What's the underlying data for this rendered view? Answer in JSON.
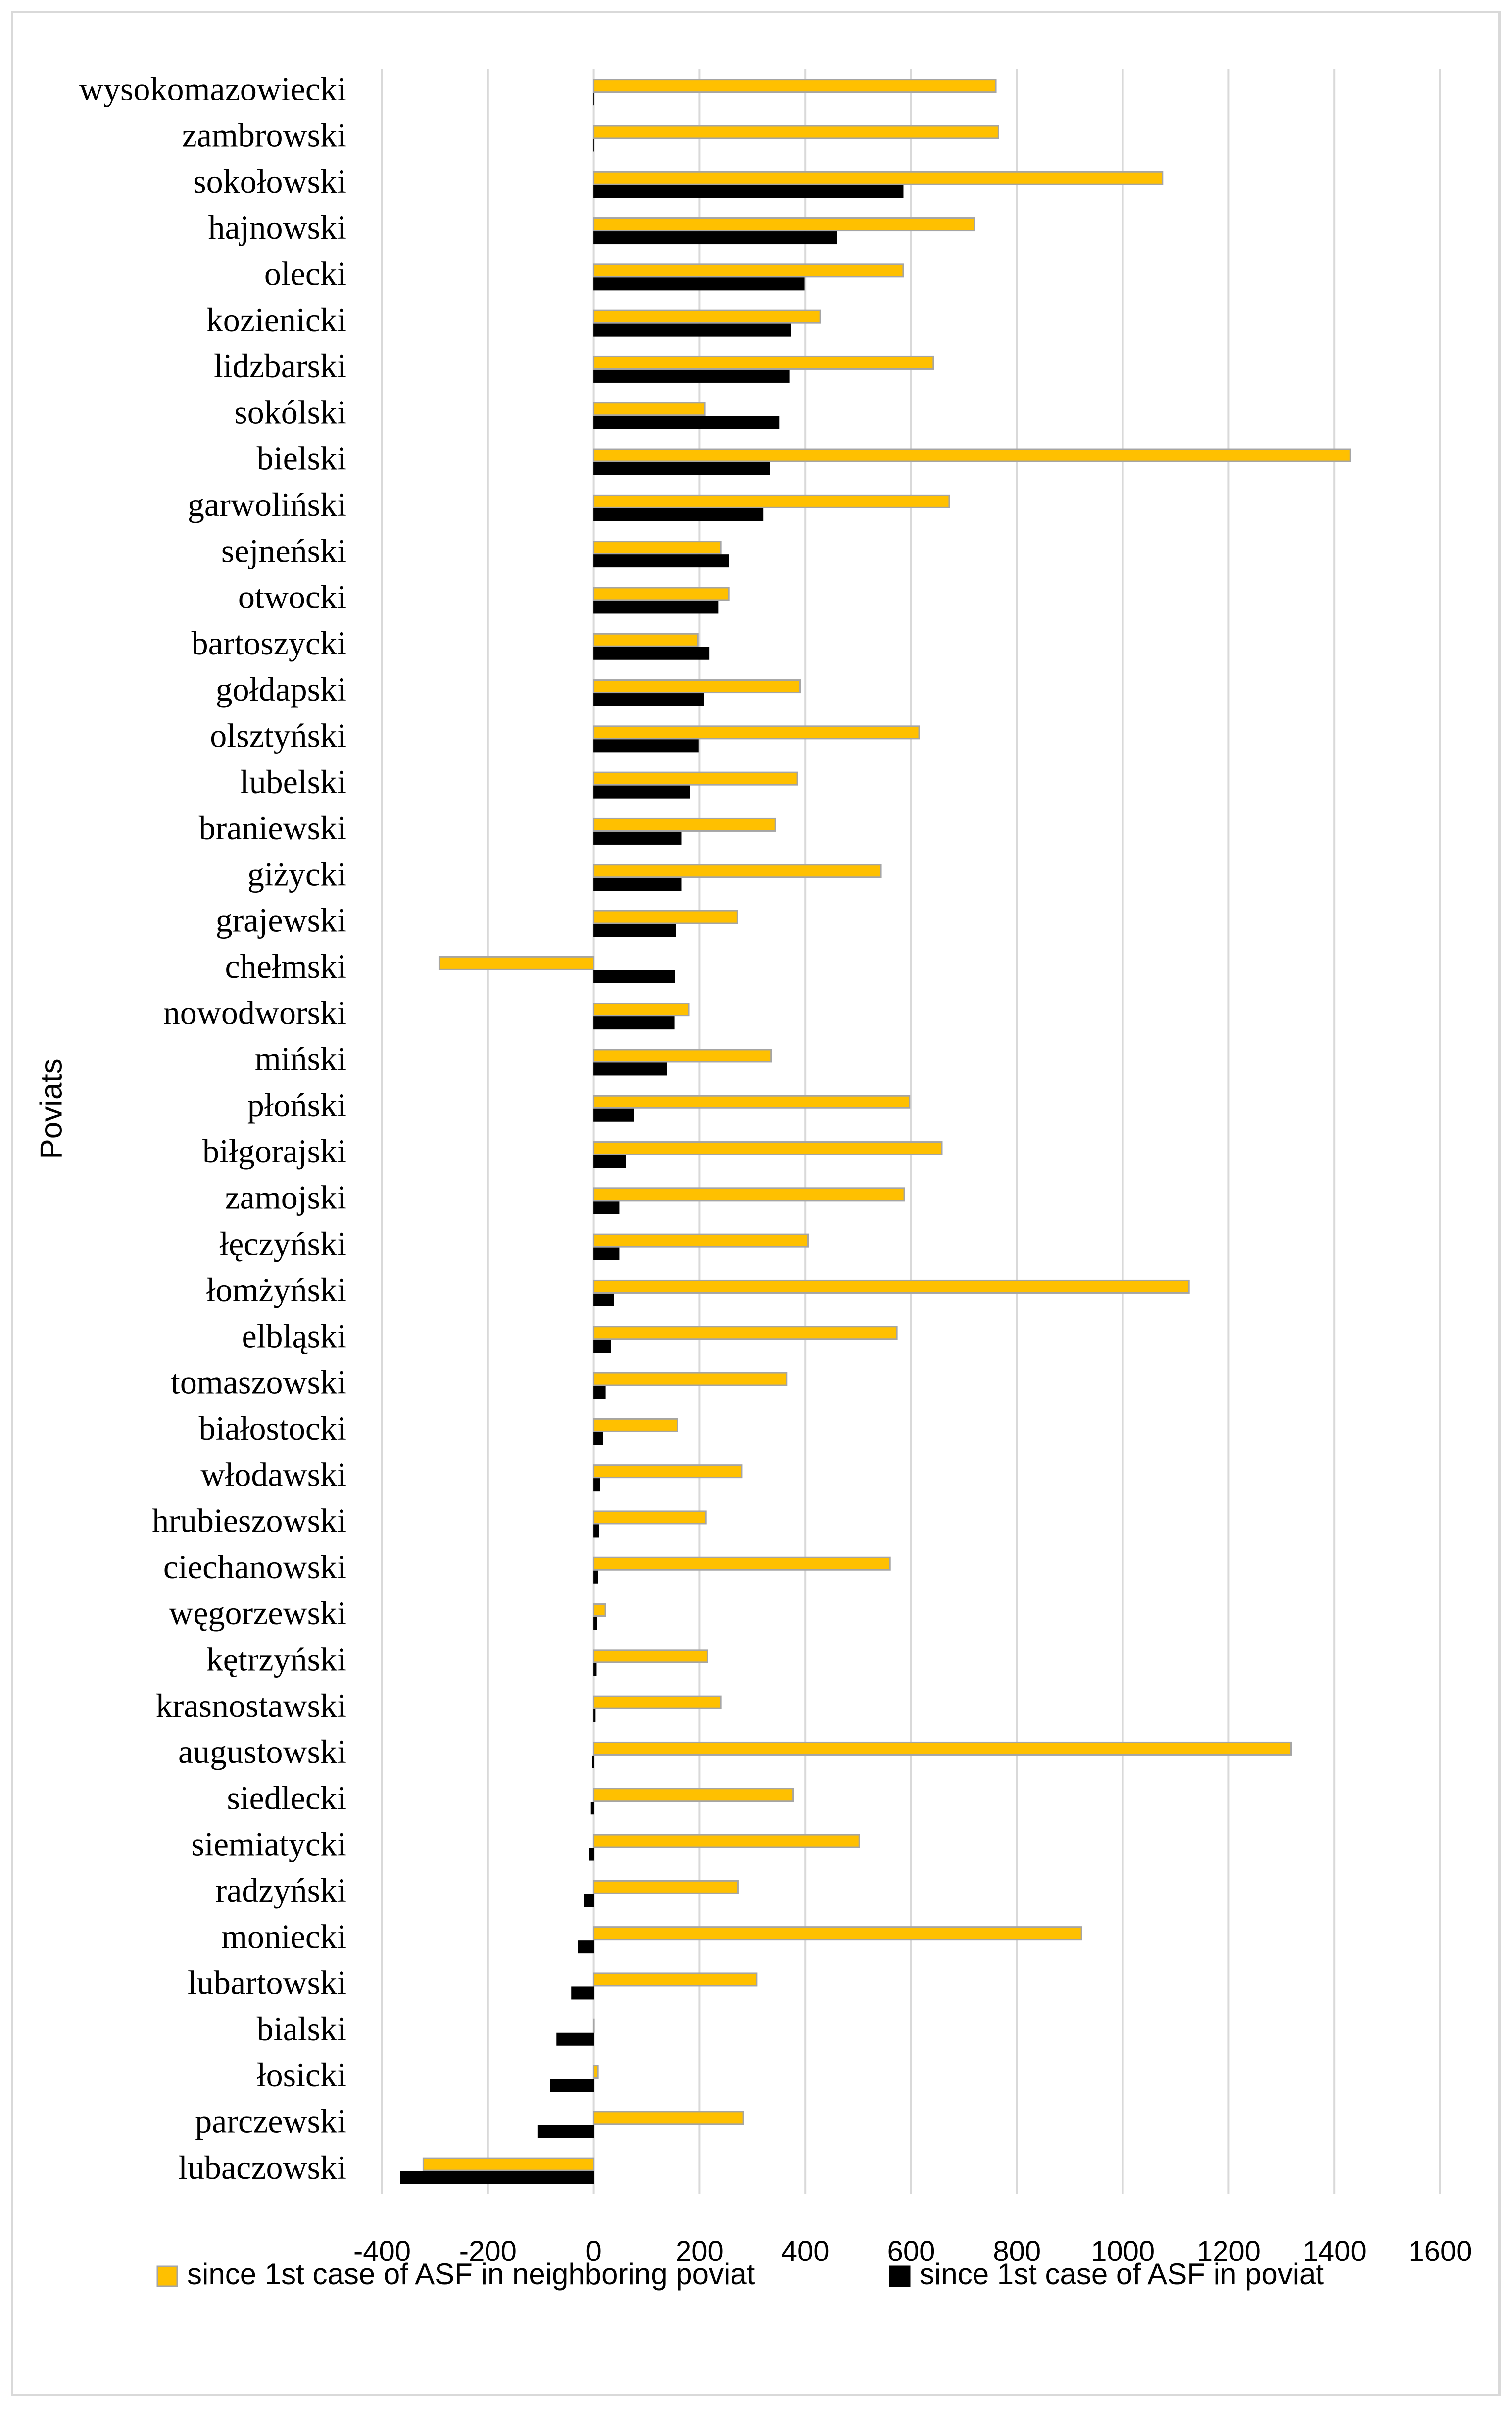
{
  "chart_data": {
    "type": "bar",
    "orientation": "horizontal",
    "title": "",
    "xlabel": "",
    "ylabel": "Poviats",
    "xlim": [
      -400,
      1600
    ],
    "xticks": [
      -400,
      -200,
      0,
      200,
      400,
      600,
      800,
      1000,
      1200,
      1400,
      1600
    ],
    "grid": true,
    "legend_position": "bottom",
    "categories": [
      "wysokomazowiecki",
      "zambrowski",
      "sokołowski",
      "hajnowski",
      "olecki",
      "kozienicki",
      "lidzbarski",
      "sokólski",
      "bielski",
      "garwoliński",
      "sejneński",
      "otwocki",
      "bartoszycki",
      "gołdapski",
      "olsztyński",
      "lubelski",
      "braniewski",
      "giżycki",
      "grajewski",
      "chełmski",
      "nowodworski",
      "miński",
      "płoński",
      "biłgorajski",
      "zamojski",
      "łęczyński",
      "łomżyński",
      "elbląski",
      "tomaszowski",
      "białostocki",
      "włodawski",
      "hrubieszowski",
      "ciechanowski",
      "węgorzewski",
      "kętrzyński",
      "krasnostawski",
      "augustowski",
      "siedlecki",
      "siemiatycki",
      "radzyński",
      "moniecki",
      "lubartowski",
      "bialski",
      "łosicki",
      "parczewski",
      "lubaczowski"
    ],
    "series": [
      {
        "name": "since 1st case of ASF in neighboring poviat",
        "color": "#ffc000",
        "edge_color": "#a5a5a5",
        "values": [
          760,
          765,
          1075,
          720,
          585,
          428,
          642,
          210,
          1430,
          672,
          240,
          255,
          197,
          390,
          615,
          385,
          343,
          543,
          272,
          -292,
          180,
          335,
          597,
          658,
          587,
          405,
          1125,
          573,
          365,
          158,
          280,
          212,
          560,
          22,
          215,
          240,
          1318,
          377,
          502,
          273,
          922,
          308,
          0,
          8,
          283,
          -322
        ]
      },
      {
        "name": "since 1st case of ASF in poviat",
        "color": "#000000",
        "edge_color": "#000000",
        "values": [
          0,
          0,
          585,
          460,
          398,
          373,
          370,
          350,
          332,
          320,
          255,
          235,
          218,
          208,
          198,
          182,
          165,
          165,
          155,
          153,
          152,
          138,
          75,
          60,
          48,
          48,
          38,
          32,
          22,
          17,
          12,
          10,
          8,
          6,
          5,
          3,
          -2,
          -5,
          -8,
          -18,
          -30,
          -42,
          -70,
          -82,
          -105,
          -365
        ]
      }
    ]
  }
}
